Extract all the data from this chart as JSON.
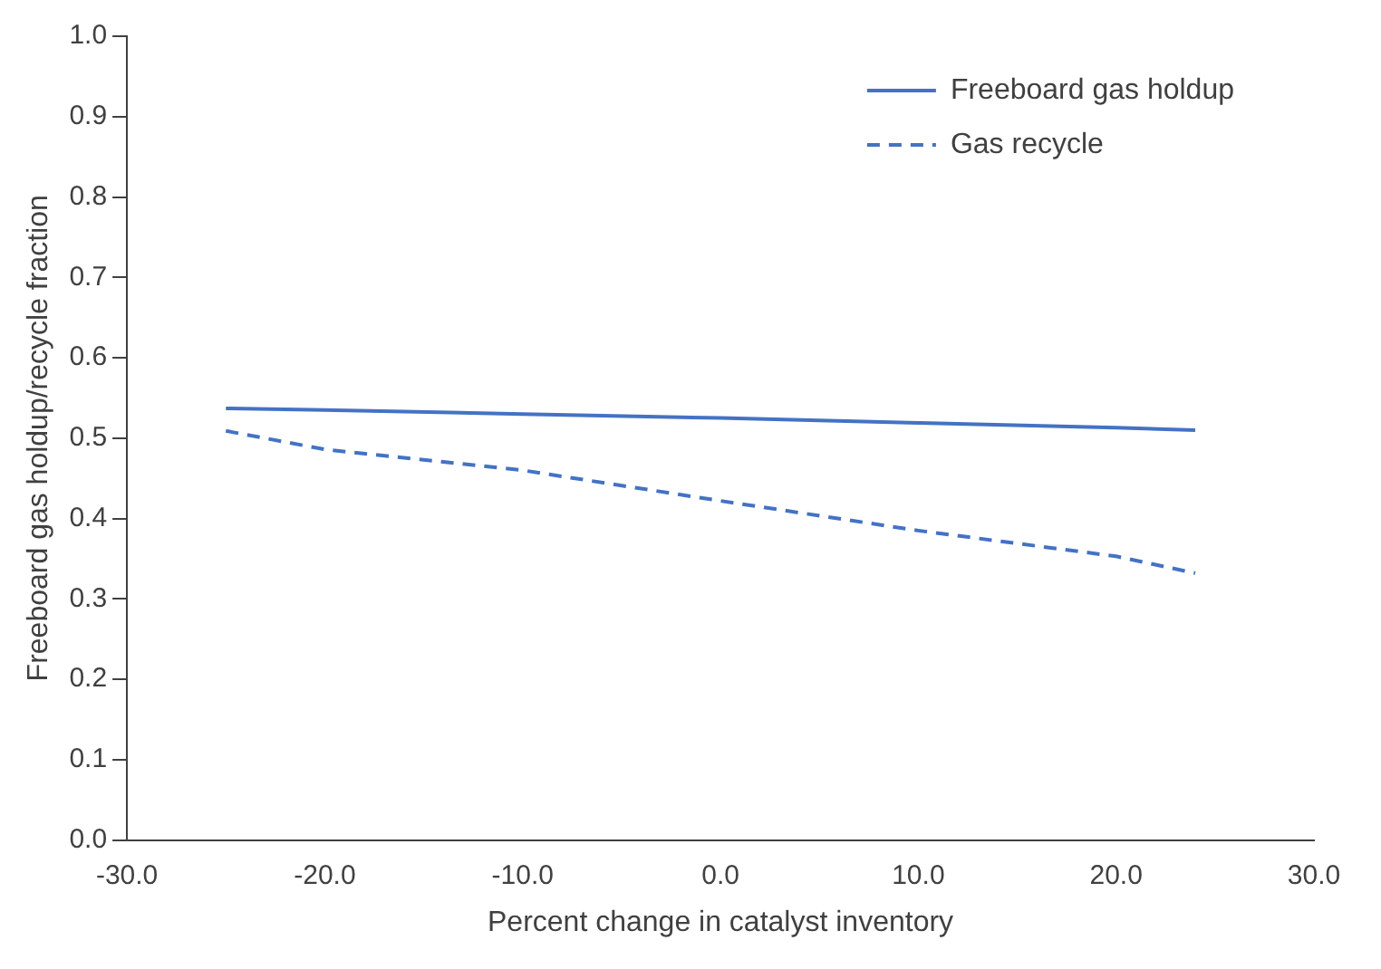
{
  "chart_data": {
    "type": "line",
    "xlabel": "Percent change in catalyst inventory",
    "ylabel": "Freeboard gas holdup/recycle fraction",
    "xlim": [
      -30,
      30
    ],
    "xticks": [
      {
        "value": -30,
        "label": "-30.0"
      },
      {
        "value": -20,
        "label": "-20.0"
      },
      {
        "value": -10,
        "label": "-10.0"
      },
      {
        "value": 0,
        "label": "0.0"
      },
      {
        "value": 10,
        "label": "10.0"
      },
      {
        "value": 20,
        "label": "20.0"
      },
      {
        "value": 30,
        "label": "30.0"
      }
    ],
    "ylim": [
      0,
      1
    ],
    "yticks": [
      {
        "value": 0,
        "label": "0.0"
      },
      {
        "value": 0.1,
        "label": "0.1"
      },
      {
        "value": 0.2,
        "label": "0.2"
      },
      {
        "value": 0.3,
        "label": "0.3"
      },
      {
        "value": 0.4,
        "label": "0.4"
      },
      {
        "value": 0.5,
        "label": "0.5"
      },
      {
        "value": 0.6,
        "label": "0.6"
      },
      {
        "value": 0.7,
        "label": "0.7"
      },
      {
        "value": 0.8,
        "label": "0.8"
      },
      {
        "value": 0.9,
        "label": "0.9"
      },
      {
        "value": 1,
        "label": "1.0"
      }
    ],
    "x": [
      -25,
      -20,
      -10,
      0,
      10,
      20,
      24
    ],
    "series": [
      {
        "name": "Freeboard gas holdup",
        "color": "#4472c4",
        "line_style": "solid",
        "values": [
          0.537,
          0.535,
          0.53,
          0.525,
          0.519,
          0.513,
          0.51
        ]
      },
      {
        "name": "Gas recycle",
        "color": "#4472c4",
        "line_style": "dashed",
        "values": [
          0.509,
          0.486,
          0.46,
          0.422,
          0.385,
          0.353,
          0.332
        ]
      }
    ],
    "grid": false,
    "legend": "top right",
    "marker": "none"
  }
}
